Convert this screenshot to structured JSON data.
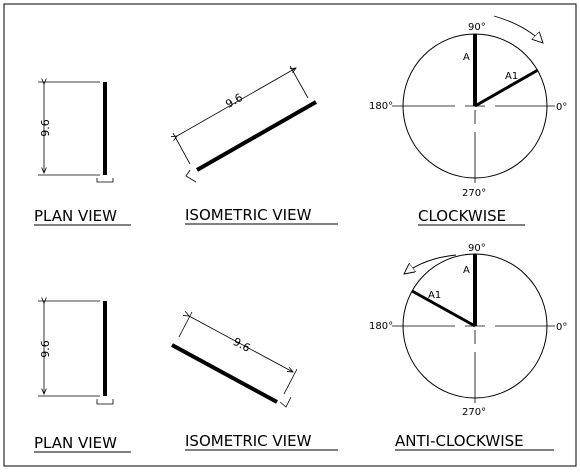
{
  "panels": {
    "top": {
      "plan_caption": "PLAN VIEW",
      "iso_caption": "ISOMETRIC VIEW",
      "direction_caption": "CLOCKWISE",
      "plan_dimension": "9.6",
      "iso_dimension": "9.6"
    },
    "bottom": {
      "plan_caption": "PLAN VIEW",
      "iso_caption": "ISOMETRIC VIEW",
      "direction_caption": "ANTI-CLOCKWISE",
      "plan_dimension": "9.6",
      "iso_dimension": "9.6"
    }
  },
  "circle_labels": {
    "top": {
      "deg90": "90°",
      "deg180": "180°",
      "deg0": "0°",
      "deg270": "270°",
      "a": "A",
      "a1": "A1"
    },
    "bottom": {
      "deg90": "90°",
      "deg180": "180°",
      "deg0": "0°",
      "deg270": "270°",
      "a": "A",
      "a1": "A1"
    }
  },
  "colors": {
    "line": "#000000",
    "background": "#ffffff"
  }
}
